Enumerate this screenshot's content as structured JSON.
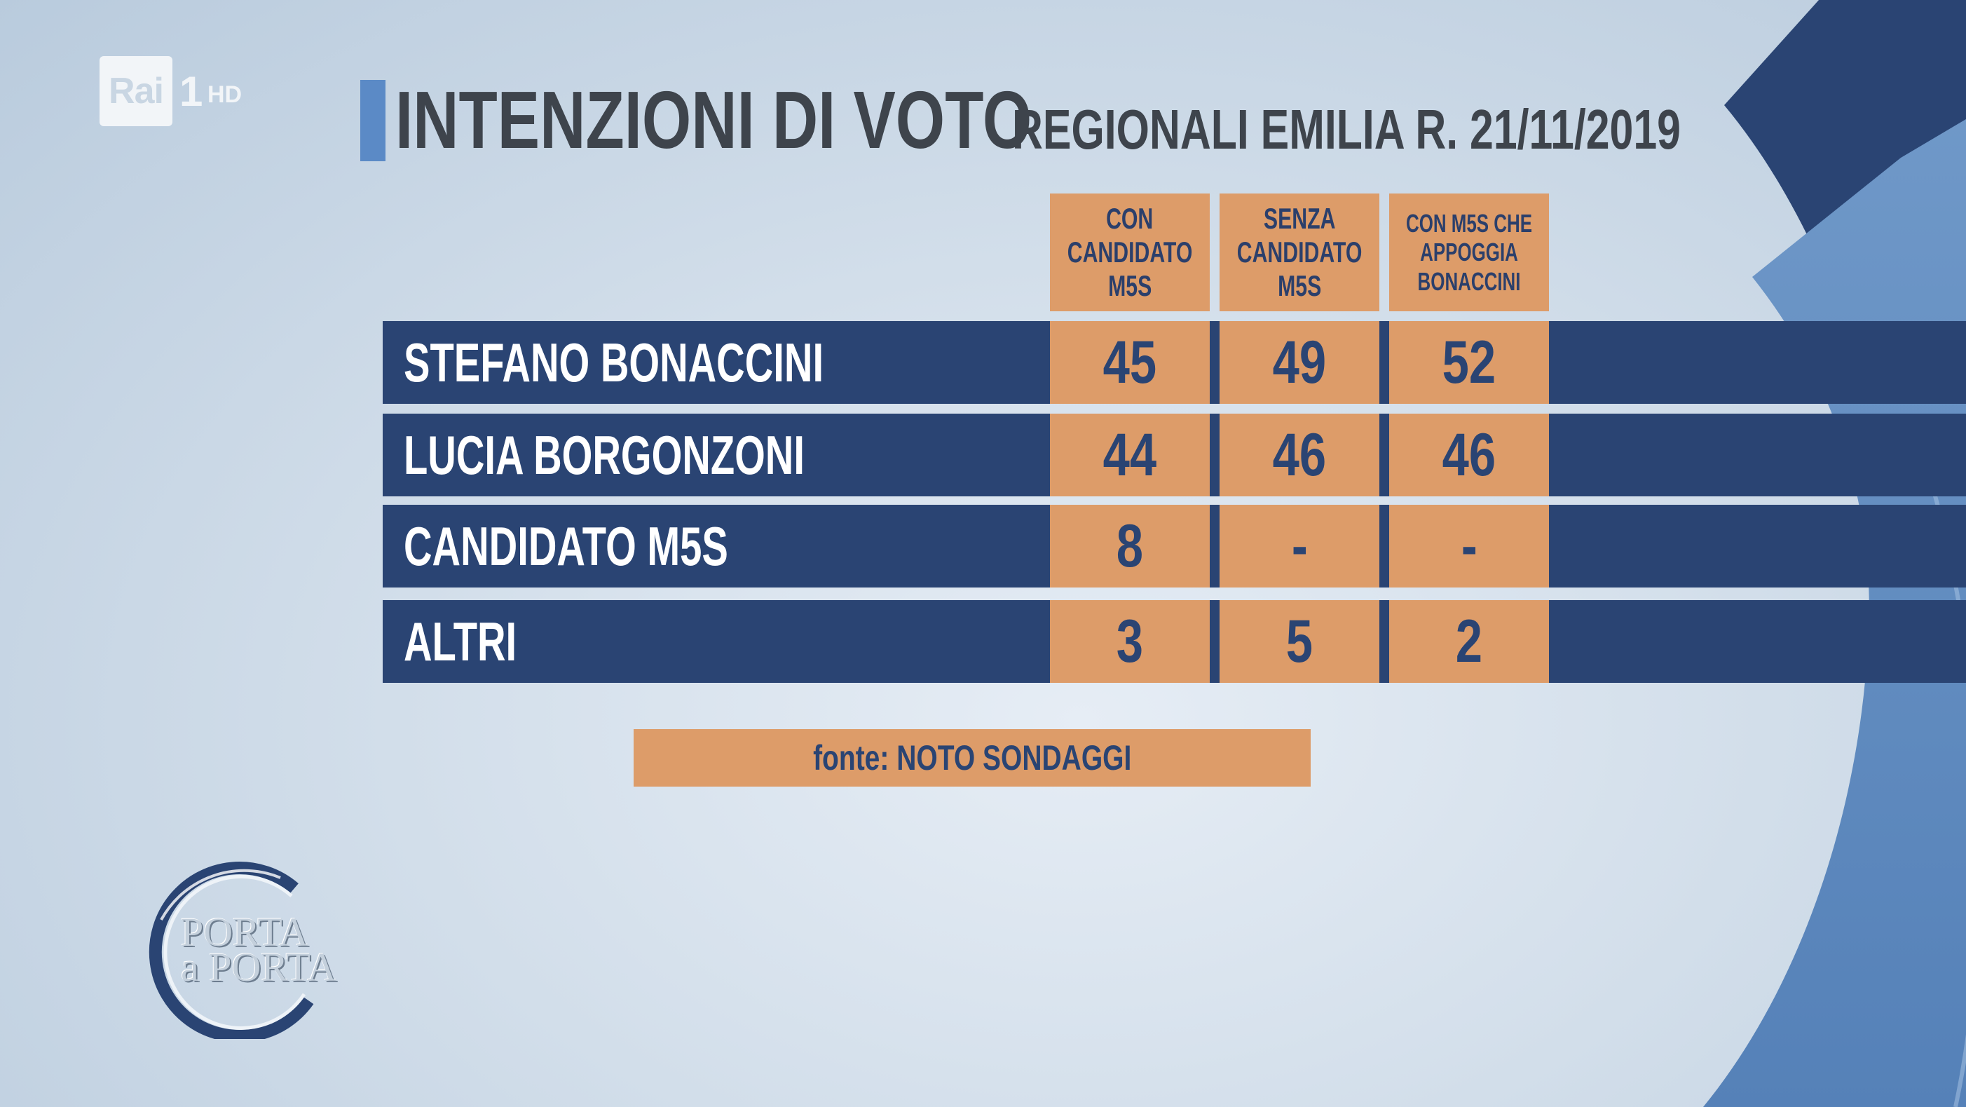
{
  "broadcaster": {
    "logo": "Rai",
    "channel": "1",
    "quality": "HD"
  },
  "title": {
    "main": "INTENZIONI DI VOTO",
    "subtitle": "REGIONALI EMILIA R. 21/11/2019"
  },
  "chart_data": {
    "type": "table",
    "columns": [
      {
        "lines": [
          "CON",
          "CANDIDATO",
          "M5S"
        ]
      },
      {
        "lines": [
          "SENZA",
          "CANDIDATO",
          "M5S"
        ]
      },
      {
        "lines": [
          "CON M5S CHE",
          "APPOGGIA",
          "BONACCINI"
        ]
      }
    ],
    "rows": [
      {
        "label": "STEFANO BONACCINI",
        "values": [
          "45",
          "49",
          "52"
        ]
      },
      {
        "label": "LUCIA BORGONZONI",
        "values": [
          "44",
          "46",
          "46"
        ]
      },
      {
        "label": "CANDIDATO M5S",
        "values": [
          "8",
          "-",
          "-"
        ]
      },
      {
        "label": "ALTRI",
        "values": [
          "3",
          "5",
          "2"
        ]
      }
    ],
    "source": "fonte: NOTO SONDAGGI"
  },
  "show_logo": {
    "line1": "PORTA",
    "line2": "a PORTA"
  },
  "colors": {
    "band": "#2a4473",
    "cell": "#dd9c69",
    "title": "#3e444c",
    "accent": "#5b8ac6"
  }
}
